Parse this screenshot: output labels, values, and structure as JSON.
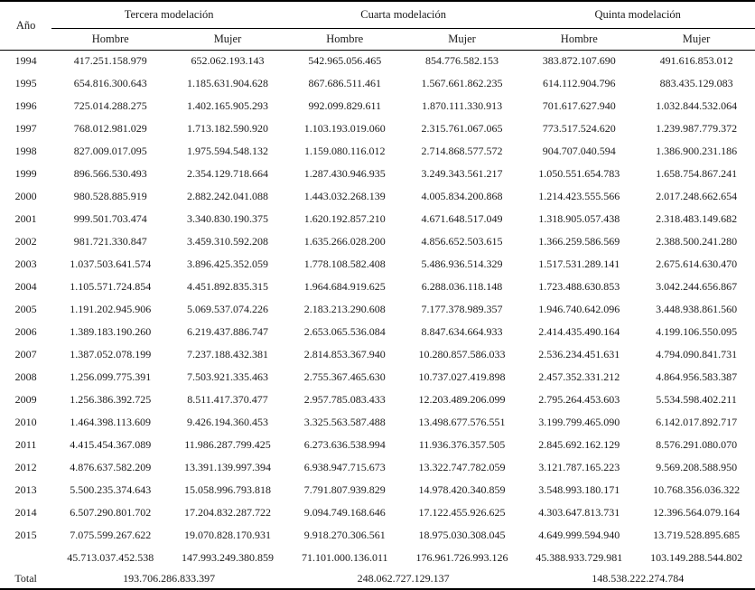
{
  "table": {
    "year_header": "Año",
    "total_label": "Total",
    "groups": [
      {
        "label": "Tercera modelación"
      },
      {
        "label": "Cuarta modelación"
      },
      {
        "label": "Quinta modelación"
      }
    ],
    "sub_headers": [
      "Hombre",
      "Mujer",
      "Hombre",
      "Mujer",
      "Hombre",
      "Mujer"
    ],
    "rows": [
      {
        "year": "1994",
        "values": [
          "417.251.158.979",
          "652.062.193.143",
          "542.965.056.465",
          "854.776.582.153",
          "383.872.107.690",
          "491.616.853.012"
        ]
      },
      {
        "year": "1995",
        "values": [
          "654.816.300.643",
          "1.185.631.904.628",
          "867.686.511.461",
          "1.567.661.862.235",
          "614.112.904.796",
          "883.435.129.083"
        ]
      },
      {
        "year": "1996",
        "values": [
          "725.014.288.275",
          "1.402.165.905.293",
          "992.099.829.611",
          "1.870.111.330.913",
          "701.617.627.940",
          "1.032.844.532.064"
        ]
      },
      {
        "year": "1997",
        "values": [
          "768.012.981.029",
          "1.713.182.590.920",
          "1.103.193.019.060",
          "2.315.761.067.065",
          "773.517.524.620",
          "1.239.987.779.372"
        ]
      },
      {
        "year": "1998",
        "values": [
          "827.009.017.095",
          "1.975.594.548.132",
          "1.159.080.116.012",
          "2.714.868.577.572",
          "904.707.040.594",
          "1.386.900.231.186"
        ]
      },
      {
        "year": "1999",
        "values": [
          "896.566.530.493",
          "2.354.129.718.664",
          "1.287.430.946.935",
          "3.249.343.561.217",
          "1.050.551.654.783",
          "1.658.754.867.241"
        ]
      },
      {
        "year": "2000",
        "values": [
          "980.528.885.919",
          "2.882.242.041.088",
          "1.443.032.268.139",
          "4.005.834.200.868",
          "1.214.423.555.566",
          "2.017.248.662.654"
        ]
      },
      {
        "year": "2001",
        "values": [
          "999.501.703.474",
          "3.340.830.190.375",
          "1.620.192.857.210",
          "4.671.648.517.049",
          "1.318.905.057.438",
          "2.318.483.149.682"
        ]
      },
      {
        "year": "2002",
        "values": [
          "981.721.330.847",
          "3.459.310.592.208",
          "1.635.266.028.200",
          "4.856.652.503.615",
          "1.366.259.586.569",
          "2.388.500.241.280"
        ]
      },
      {
        "year": "2003",
        "values": [
          "1.037.503.641.574",
          "3.896.425.352.059",
          "1.778.108.582.408",
          "5.486.936.514.329",
          "1.517.531.289.141",
          "2.675.614.630.470"
        ]
      },
      {
        "year": "2004",
        "values": [
          "1.105.571.724.854",
          "4.451.892.835.315",
          "1.964.684.919.625",
          "6.288.036.118.148",
          "1.723.488.630.853",
          "3.042.244.656.867"
        ]
      },
      {
        "year": "2005",
        "values": [
          "1.191.202.945.906",
          "5.069.537.074.226",
          "2.183.213.290.608",
          "7.177.378.989.357",
          "1.946.740.642.096",
          "3.448.938.861.560"
        ]
      },
      {
        "year": "2006",
        "values": [
          "1.389.183.190.260",
          "6.219.437.886.747",
          "2.653.065.536.084",
          "8.847.634.664.933",
          "2.414.435.490.164",
          "4.199.106.550.095"
        ]
      },
      {
        "year": "2007",
        "values": [
          "1.387.052.078.199",
          "7.237.188.432.381",
          "2.814.853.367.940",
          "10.280.857.586.033",
          "2.536.234.451.631",
          "4.794.090.841.731"
        ]
      },
      {
        "year": "2008",
        "values": [
          "1.256.099.775.391",
          "7.503.921.335.463",
          "2.755.367.465.630",
          "10.737.027.419.898",
          "2.457.352.331.212",
          "4.864.956.583.387"
        ]
      },
      {
        "year": "2009",
        "values": [
          "1.256.386.392.725",
          "8.511.417.370.477",
          "2.957.785.083.433",
          "12.203.489.206.099",
          "2.795.264.453.603",
          "5.534.598.402.211"
        ]
      },
      {
        "year": "2010",
        "values": [
          "1.464.398.113.609",
          "9.426.194.360.453",
          "3.325.563.587.488",
          "13.498.677.576.551",
          "3.199.799.465.090",
          "6.142.017.892.717"
        ]
      },
      {
        "year": "2011",
        "values": [
          "4.415.454.367.089",
          "11.986.287.799.425",
          "6.273.636.538.994",
          "11.936.376.357.505",
          "2.845.692.162.129",
          "8.576.291.080.070"
        ]
      },
      {
        "year": "2012",
        "values": [
          "4.876.637.582.209",
          "13.391.139.997.394",
          "6.938.947.715.673",
          "13.322.747.782.059",
          "3.121.787.165.223",
          "9.569.208.588.950"
        ]
      },
      {
        "year": "2013",
        "values": [
          "5.500.235.374.643",
          "15.058.996.793.818",
          "7.791.807.939.829",
          "14.978.420.340.859",
          "3.548.993.180.171",
          "10.768.356.036.322"
        ]
      },
      {
        "year": "2014",
        "values": [
          "6.507.290.801.702",
          "17.204.832.287.722",
          "9.094.749.168.646",
          "17.122.455.926.625",
          "4.303.647.813.731",
          "12.396.564.079.164"
        ]
      },
      {
        "year": "2015",
        "values": [
          "7.075.599.267.622",
          "19.070.828.170.931",
          "9.918.270.306.561",
          "18.975.030.308.045",
          "4.649.999.594.940",
          "13.719.528.895.685"
        ]
      }
    ],
    "subtotal_row": {
      "values": [
        "45.713.037.452.538",
        "147.993.249.380.859",
        "71.101.000.136.011",
        "176.961.726.993.126",
        "45.388.933.729.981",
        "103.149.288.544.802"
      ]
    },
    "total_row": {
      "values": [
        "193.706.286.833.397",
        "248.062.727.129.137",
        "148.538.222.274.784"
      ]
    }
  },
  "colors": {
    "background": "#ffffff",
    "text": "#1a1a1a",
    "border": "#000000"
  }
}
